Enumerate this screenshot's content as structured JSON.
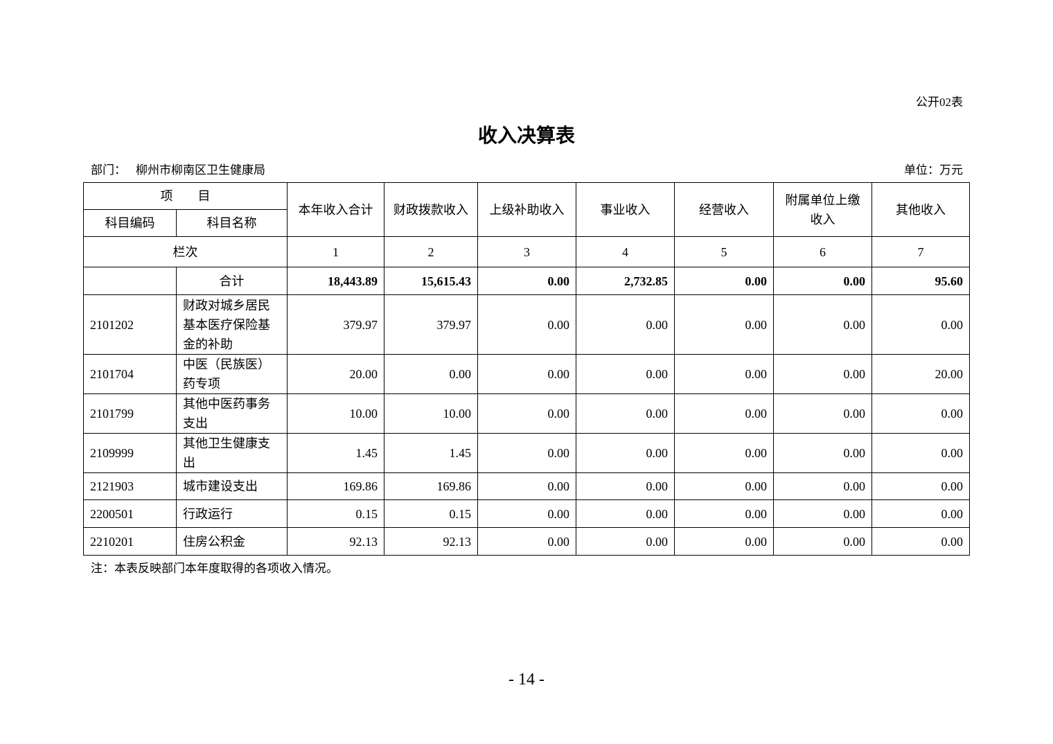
{
  "form_no": "公开02表",
  "title": "收入决算表",
  "department": {
    "label": "部门：",
    "value": "柳州市柳南区卫生健康局"
  },
  "unit": "单位：万元",
  "header": {
    "item": "项　　目",
    "code": "科目编码",
    "name": "科目名称",
    "columns": [
      "本年收入合计",
      "财政拨款收入",
      "上级补助收入",
      "事业收入",
      "经营收入",
      "附属单位上缴收入",
      "其他收入"
    ],
    "seq_label": "栏次",
    "seq": [
      "1",
      "2",
      "3",
      "4",
      "5",
      "6",
      "7"
    ]
  },
  "total": {
    "label": "合计",
    "values": [
      "18,443.89",
      "15,615.43",
      "0.00",
      "2,732.85",
      "0.00",
      "0.00",
      "95.60"
    ]
  },
  "rows": [
    {
      "code": "2101202",
      "name": "财政对城乡居民基本医疗保险基金的补助",
      "values": [
        "379.97",
        "379.97",
        "0.00",
        "0.00",
        "0.00",
        "0.00",
        "0.00"
      ]
    },
    {
      "code": "2101704",
      "name": "中医（民族医）药专项",
      "values": [
        "20.00",
        "0.00",
        "0.00",
        "0.00",
        "0.00",
        "0.00",
        "20.00"
      ]
    },
    {
      "code": "2101799",
      "name": "其他中医药事务支出",
      "values": [
        "10.00",
        "10.00",
        "0.00",
        "0.00",
        "0.00",
        "0.00",
        "0.00"
      ]
    },
    {
      "code": "2109999",
      "name": "其他卫生健康支出",
      "values": [
        "1.45",
        "1.45",
        "0.00",
        "0.00",
        "0.00",
        "0.00",
        "0.00"
      ]
    },
    {
      "code": "2121903",
      "name": "城市建设支出",
      "values": [
        "169.86",
        "169.86",
        "0.00",
        "0.00",
        "0.00",
        "0.00",
        "0.00"
      ]
    },
    {
      "code": "2200501",
      "name": "行政运行",
      "values": [
        "0.15",
        "0.15",
        "0.00",
        "0.00",
        "0.00",
        "0.00",
        "0.00"
      ]
    },
    {
      "code": "2210201",
      "name": "住房公积金",
      "values": [
        "92.13",
        "92.13",
        "0.00",
        "0.00",
        "0.00",
        "0.00",
        "0.00"
      ]
    }
  ],
  "note": "注：本表反映部门本年度取得的各项收入情况。",
  "page_number": "- 14 -"
}
